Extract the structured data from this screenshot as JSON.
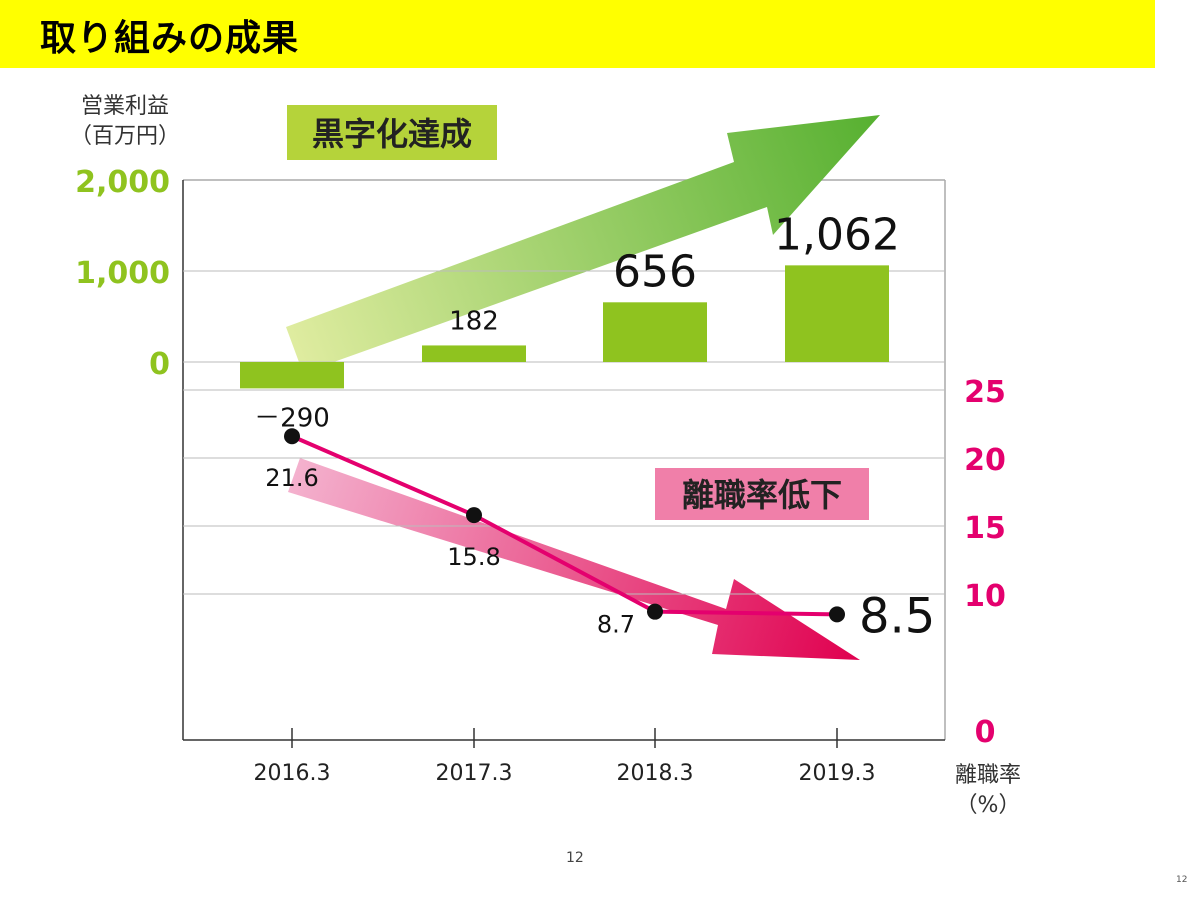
{
  "slide": {
    "title": "取り組みの成果",
    "page_number": "12",
    "corner_number": "12"
  },
  "colors": {
    "title_band": "#ffff00",
    "bar_green": "#8fc31f",
    "axis_green": "#8fc31f",
    "line_pink": "#e4006e",
    "axis_pink": "#e4006e",
    "grid": "#bbbbbb",
    "badge_green": "#b5d33a",
    "badge_pink": "#f07fa9"
  },
  "chart_data": [
    {
      "type": "bar",
      "ylabel_line1": "営業利益",
      "ylabel_line2": "（百万円）",
      "badge": "黒字化達成",
      "categories": [
        "2016.3",
        "2017.3",
        "2018.3",
        "2019.3"
      ],
      "values": [
        -290,
        182,
        656,
        1062
      ],
      "value_labels": [
        "－290",
        "182",
        "656",
        "1,062"
      ],
      "yticks": [
        "2,000",
        "1,000",
        "0"
      ],
      "ytick_values": [
        2000,
        1000,
        0
      ],
      "ylim": [
        -1000,
        2000
      ],
      "grid": true
    },
    {
      "type": "line",
      "ylabel_line1": "離職率",
      "ylabel_line2": "（%）",
      "badge": "離職率低下",
      "categories": [
        "2016.3",
        "2017.3",
        "2018.3",
        "2019.3"
      ],
      "values": [
        21.6,
        15.8,
        8.7,
        8.5
      ],
      "value_labels": [
        "21.6",
        "15.8",
        "8.7",
        "8.5"
      ],
      "yticks": [
        "25",
        "20",
        "15",
        "10",
        "0"
      ],
      "ytick_values": [
        25,
        20,
        15,
        10,
        0
      ],
      "ylim": [
        0,
        25
      ],
      "grid": true
    }
  ]
}
